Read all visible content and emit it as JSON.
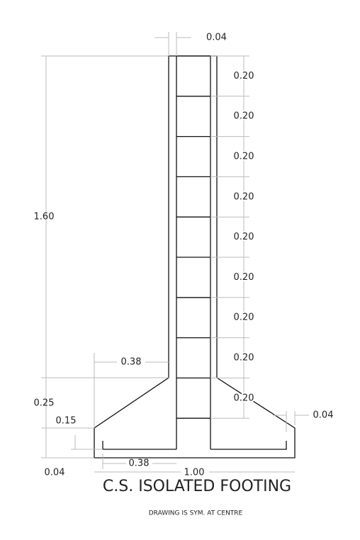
{
  "title": "C.S. ISOLATED FOOTING",
  "note": "DRAWING IS SYM. AT CENTRE",
  "dimensions": {
    "column_cover": "0.04",
    "column_height": "1.60",
    "rebar_spacing": [
      "0.20",
      "0.20",
      "0.20",
      "0.20",
      "0.20",
      "0.20",
      "0.20",
      "0.20",
      "0.20"
    ],
    "haunch_height": "0.25",
    "edge_height": "0.15",
    "bottom_cover": "0.04",
    "side_cover": "0.04",
    "haunch_width": "0.38",
    "bar_length": "0.38",
    "footing_width": "1.00"
  }
}
